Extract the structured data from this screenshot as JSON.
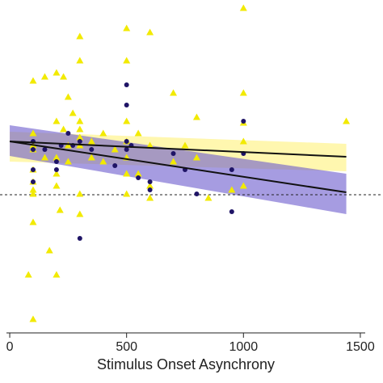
{
  "chart_data": {
    "type": "scatter",
    "xlabel": "Stimulus Onset Asynchrony",
    "xlim": [
      -14,
      1521
    ],
    "xticks": [
      0,
      500,
      1000,
      1500
    ],
    "ylim": [
      -1.71,
      2.41
    ],
    "hline": 0,
    "series": [
      {
        "color": "#f2ea00",
        "marker": "triangle",
        "x": [
          100,
          100,
          100,
          100,
          100,
          100,
          100,
          100,
          100,
          100,
          150,
          150,
          170,
          200,
          200,
          200,
          200,
          200,
          215,
          230,
          230,
          250,
          250,
          250,
          270,
          300,
          300,
          300,
          300,
          300,
          300,
          300,
          300,
          350,
          350,
          400,
          400,
          450,
          500,
          500,
          500,
          500,
          500,
          500,
          500,
          550,
          550,
          600,
          600,
          600,
          600,
          700,
          700,
          750,
          800,
          800,
          850,
          950,
          1000,
          1000,
          1000,
          1000,
          1000,
          1440,
          200,
          80
        ],
        "values": [
          1.41,
          0.76,
          0.61,
          0.31,
          0.16,
          0.06,
          0.01,
          -0.34,
          -1.54,
          0.56,
          1.46,
          0.46,
          -0.69,
          1.51,
          0.91,
          0.46,
          0.26,
          0.11,
          -0.19,
          1.46,
          0.81,
          0.61,
          1.21,
          0.41,
          1.01,
          1.96,
          1.66,
          0.81,
          0.91,
          0.71,
          0.61,
          0.01,
          -0.24,
          0.66,
          0.46,
          0.76,
          0.41,
          0.56,
          2.06,
          1.66,
          0.91,
          0.66,
          0.46,
          0.26,
          0.01,
          0.76,
          0.26,
          2.01,
          0.61,
          0.11,
          -0.04,
          1.26,
          0.41,
          0.61,
          0.96,
          0.46,
          -0.04,
          0.06,
          2.31,
          0.11,
          0.66,
          1.26,
          0.89,
          0.91,
          -0.99,
          -0.99
        ]
      },
      {
        "color": "#1f1466",
        "marker": "circle",
        "x": [
          100,
          100,
          100,
          100,
          150,
          200,
          200,
          220,
          250,
          270,
          300,
          300,
          350,
          450,
          500,
          500,
          500,
          500,
          520,
          600,
          600,
          550,
          700,
          750,
          800,
          950,
          1000,
          950,
          1000
        ],
        "values": [
          0.66,
          0.56,
          0.31,
          0.16,
          0.56,
          0.41,
          0.31,
          0.61,
          0.76,
          0.61,
          0.66,
          -0.54,
          0.56,
          0.36,
          1.36,
          1.11,
          0.66,
          0.56,
          0.61,
          0.16,
          0.06,
          0.21,
          0.51,
          0.31,
          0.01,
          -0.21,
          0.91,
          0.31,
          0.51
        ]
      }
    ],
    "fits": [
      {
        "color": "#111111",
        "band_color": "#fff27a",
        "x": [
          0,
          1440
        ],
        "values": [
          0.66,
          0.47
        ],
        "lower": [
          0.41,
          0.29
        ],
        "upper": [
          0.78,
          0.63
        ]
      },
      {
        "color": "#111111",
        "band_color": "#6a5acd",
        "x": [
          0,
          1440
        ],
        "values": [
          0.66,
          0.03
        ],
        "lower": [
          0.48,
          -0.24
        ],
        "upper": [
          0.86,
          0.26
        ]
      }
    ]
  }
}
